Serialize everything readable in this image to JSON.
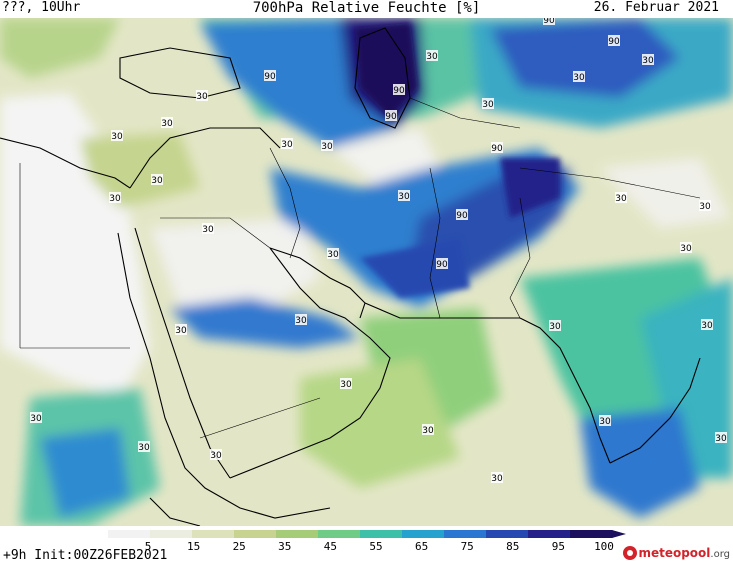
{
  "header": {
    "left": "???, 10Uhr",
    "title": "700hPa Relative Feuchte [%]",
    "date": "26. Februar 2021"
  },
  "footer": {
    "init": "+9h  Init:00Z26FEB2021",
    "brand_name": "meteopool",
    "brand_tld": ".org"
  },
  "colorbar": {
    "ticks": [
      "5",
      "15",
      "25",
      "35",
      "45",
      "55",
      "65",
      "75",
      "85",
      "95",
      "100"
    ],
    "colors": [
      "#f2f2f2",
      "#ebeede",
      "#dde2bb",
      "#c8d391",
      "#a7cc78",
      "#6fcb86",
      "#3dbfa8",
      "#26a2cf",
      "#2a76d0",
      "#2748b0",
      "#24218a",
      "#1c0f5e"
    ]
  },
  "contour_labels": [
    "90",
    "90",
    "90",
    "90",
    "90",
    "90",
    "90",
    "90",
    "30",
    "30",
    "30",
    "30",
    "30",
    "30",
    "30",
    "30",
    "30",
    "30",
    "30",
    "30",
    "30",
    "30",
    "30",
    "30",
    "30",
    "30",
    "30",
    "30",
    "30",
    "30",
    "30",
    "30",
    "30",
    "30",
    "30",
    "30",
    "30"
  ]
}
